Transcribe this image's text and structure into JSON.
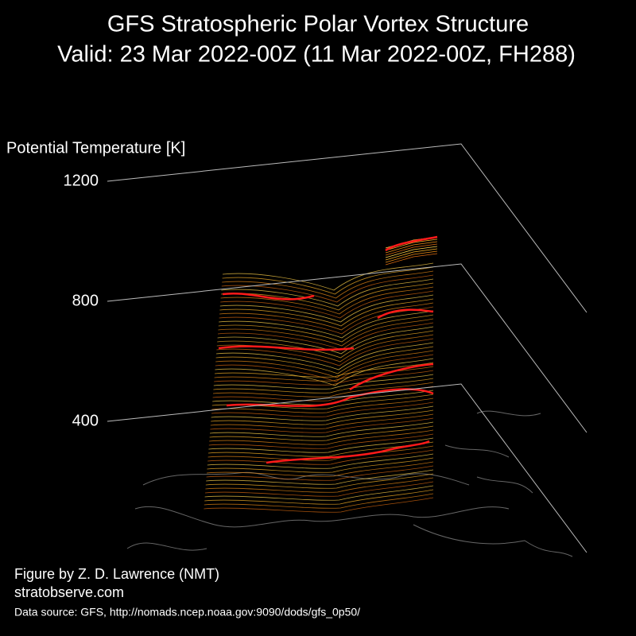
{
  "chart_data": {
    "type": "surface3d",
    "title": "GFS Stratospheric Polar Vortex Structure",
    "subtitle": "Valid: 23 Mar 2022-00Z  (11 Mar 2022-00Z, FH288)",
    "zlabel": "Potential Temperature [K]",
    "zlim": [
      400,
      1200
    ],
    "zticks": [
      400,
      800,
      1200
    ],
    "grid": true,
    "annotations": [
      "Figure by Z. D. Lawrence (NMT)",
      "stratobserve.com",
      "Data source: GFS, http://nomads.ncep.noaa.gov:9090/dods/gfs_0p50/"
    ]
  }
}
